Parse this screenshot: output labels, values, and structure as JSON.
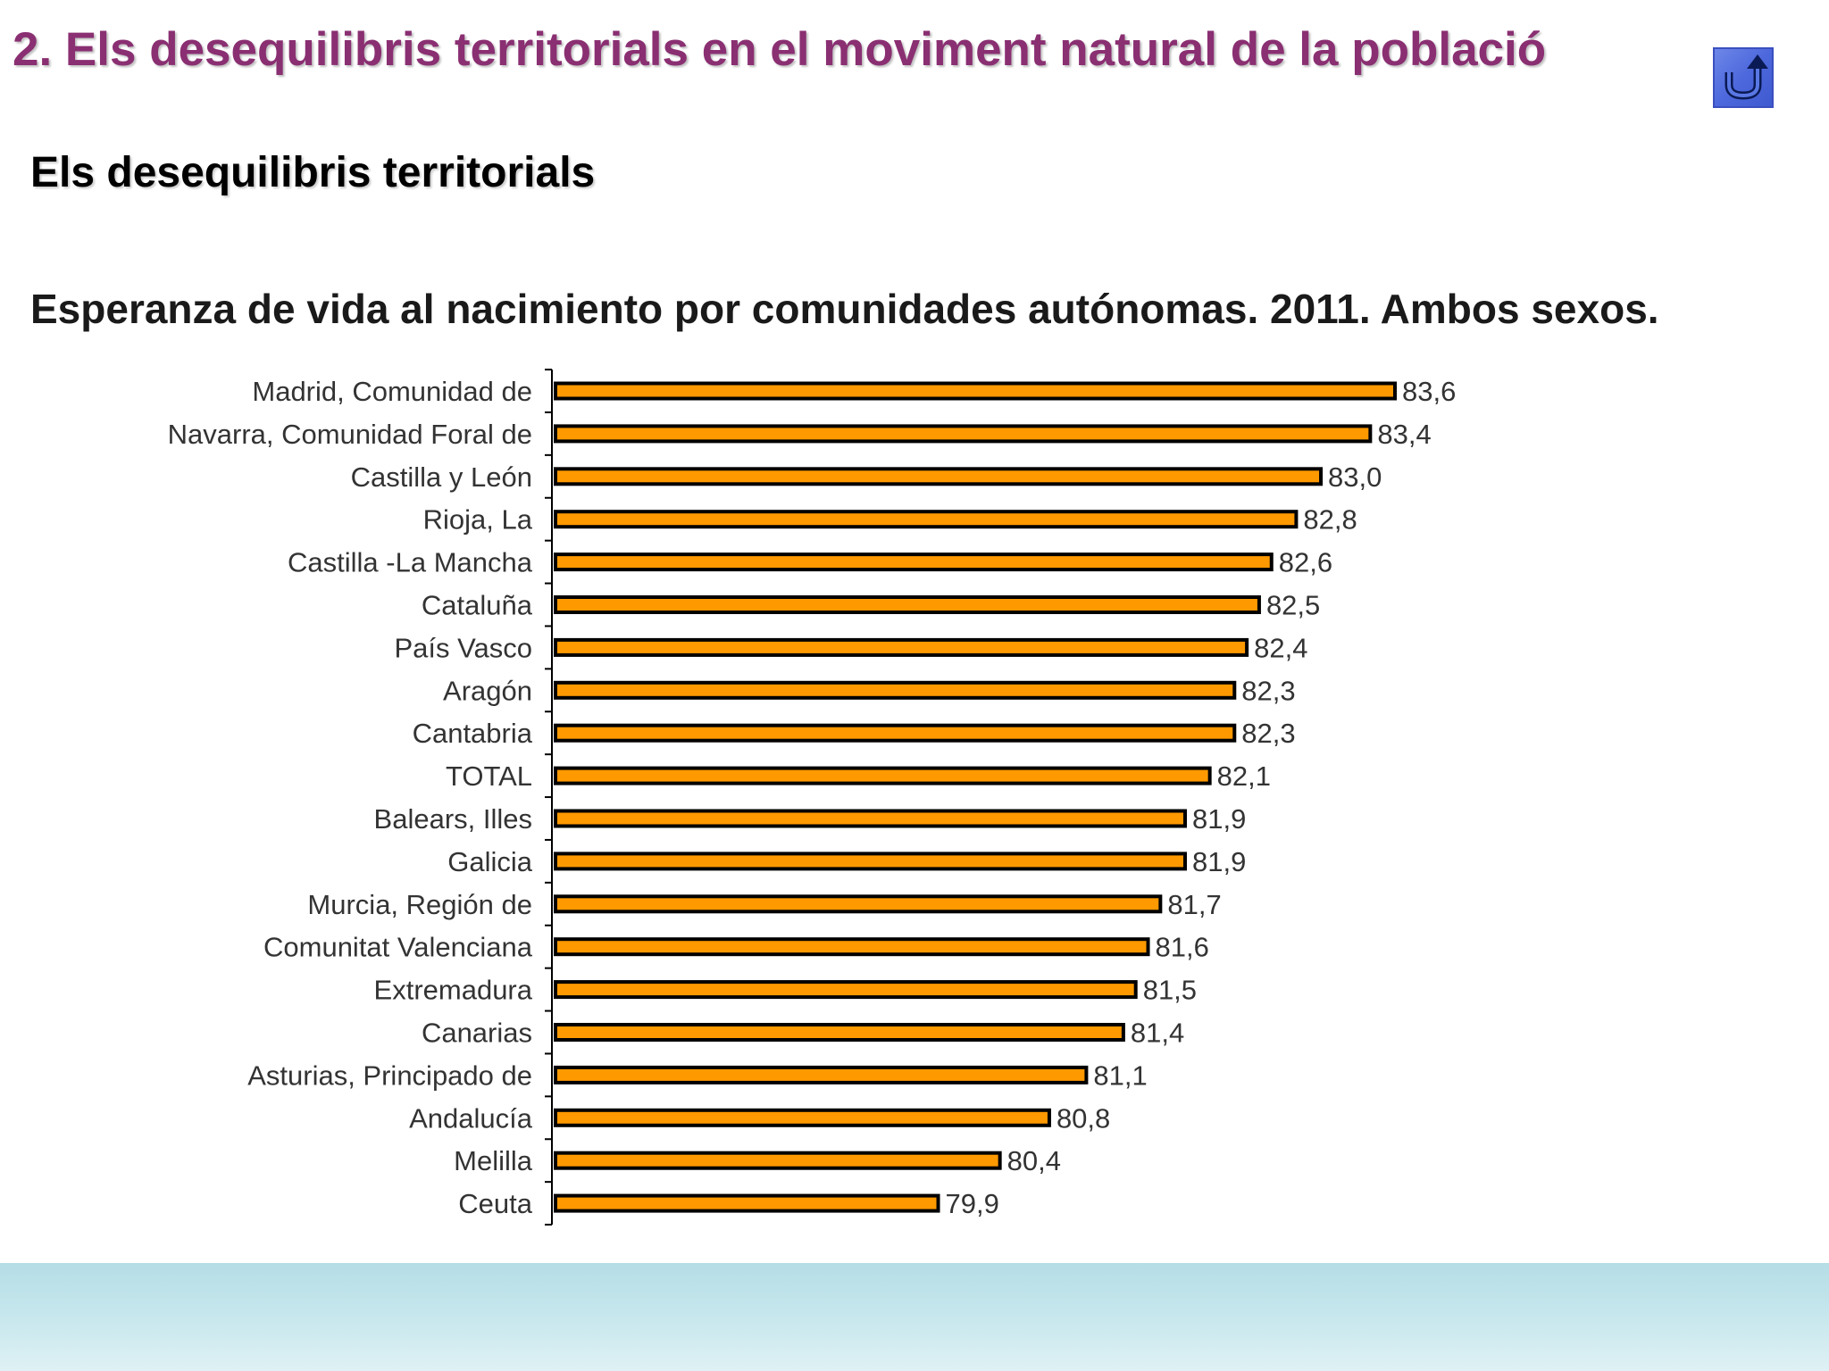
{
  "slide": {
    "title": "2. Els desequilibris territorials en el moviment natural de la població",
    "section_heading": "Els desequilibris territorials",
    "back_icon": "undo-arrow-icon"
  },
  "colors": {
    "title": "#8a2f72",
    "bar_fill": "#ff9900",
    "bar_border": "#000000",
    "footer_band": "#c9e8ee"
  },
  "chart_data": {
    "type": "bar",
    "orientation": "horizontal",
    "title": "Esperanza de vida al nacimiento por comunidades autónomas. 2011. Ambos sexos.",
    "xlabel": "",
    "ylabel": "",
    "xlim": [
      76.8,
      83.6
    ],
    "grid": false,
    "legend": "none",
    "categories": [
      "Madrid, Comunidad de",
      "Navarra, Comunidad Foral de",
      "Castilla y León",
      "Rioja, La",
      "Castilla -La Mancha",
      "Cataluña",
      "País Vasco",
      "Aragón",
      "Cantabria",
      "TOTAL",
      "Balears, Illes",
      "Galicia",
      "Murcia, Región de",
      "Comunitat Valenciana",
      "Extremadura",
      "Canarias",
      "Asturias, Principado de",
      "Andalucía",
      "Melilla",
      "Ceuta"
    ],
    "values": [
      83.6,
      83.4,
      83.0,
      82.8,
      82.6,
      82.5,
      82.4,
      82.3,
      82.3,
      82.1,
      81.9,
      81.9,
      81.7,
      81.6,
      81.5,
      81.4,
      81.1,
      80.8,
      80.4,
      79.9
    ],
    "value_labels": [
      "83,6",
      "83,4",
      "83,0",
      "82,8",
      "82,6",
      "82,5",
      "82,4",
      "82,3",
      "82,3",
      "82,1",
      "81,9",
      "81,9",
      "81,7",
      "81,6",
      "81,5",
      "81,4",
      "81,1",
      "80,8",
      "80,4",
      "79,9"
    ]
  }
}
